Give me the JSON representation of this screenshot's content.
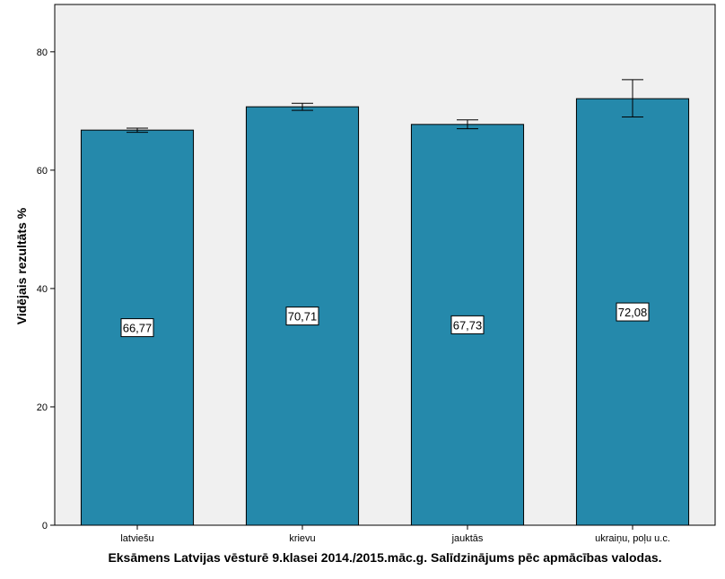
{
  "chart_data": {
    "type": "bar",
    "title": "",
    "xlabel": "Eksāmens Latvijas vēsturē 9.klasei 2014./2015.māc.g. Salīdzinājums pēc apmācības valodas.",
    "ylabel": "Vidējais rezultāts %",
    "categories": [
      "latviešu",
      "krievu",
      "jauktās",
      "ukraiņu, poļu u.c."
    ],
    "values": [
      66.77,
      70.71,
      67.73,
      72.08
    ],
    "value_labels": [
      "66,77",
      "70,71",
      "67,73",
      "72,08"
    ],
    "error_low": [
      66.4,
      70.1,
      67.0,
      69.0
    ],
    "error_high": [
      67.1,
      71.3,
      68.5,
      75.3
    ],
    "ylim": [
      0,
      88
    ],
    "yticks": [
      0,
      20,
      40,
      60,
      80
    ],
    "ytick_labels": [
      "0",
      "20",
      "40",
      "60",
      "80"
    ],
    "grid": false,
    "legend": "none",
    "colors": {
      "bar": "#2589ab",
      "plot_bg": "#f0f0f0",
      "outline": "#000000"
    }
  }
}
